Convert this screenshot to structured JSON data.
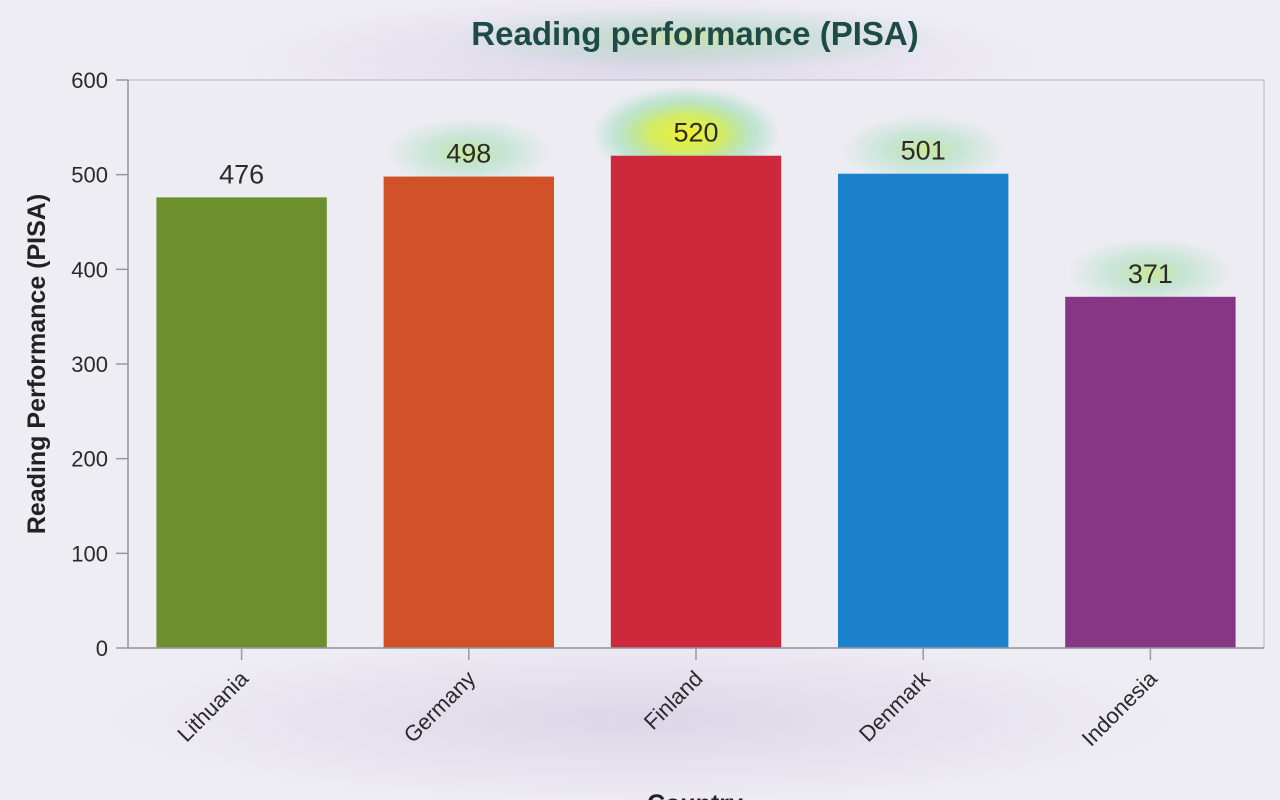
{
  "chart_data": {
    "type": "bar",
    "title": "Reading performance (PISA)",
    "xlabel": "Country",
    "ylabel": "Reading Performance (PISA)",
    "categories": [
      "Lithuania",
      "Germany",
      "Finland",
      "Denmark",
      "Indonesia"
    ],
    "values": [
      476,
      498,
      520,
      501,
      371
    ],
    "data_labels": [
      "476",
      "498",
      "520",
      "501",
      "371"
    ],
    "colors": [
      "#6d902e",
      "#d15128",
      "#cc2a3c",
      "#1c81cc",
      "#873585"
    ],
    "ylim": [
      0,
      600
    ],
    "yticks": [
      0,
      100,
      200,
      300,
      400,
      500,
      600
    ],
    "ytick_labels": [
      "0",
      "100",
      "200",
      "300",
      "400",
      "500",
      "600"
    ],
    "grid": false,
    "legend": "none"
  }
}
